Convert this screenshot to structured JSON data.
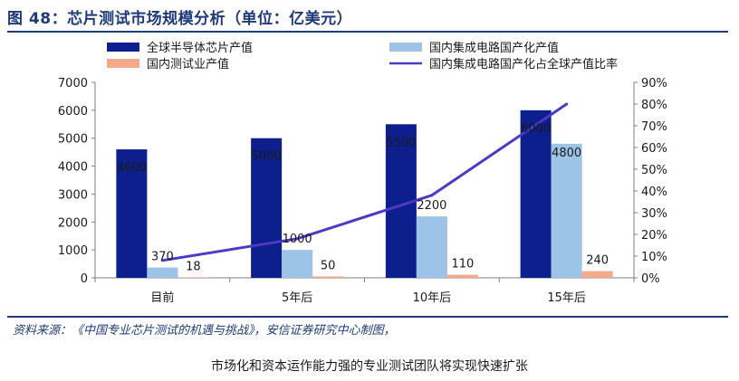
{
  "figure_title": "图 48：芯片测试市场规模分析（单位：亿美元）",
  "source_note": "资料来源：《中国专业芯片测试的机遇与挑战》，安信证券研究中心制图，",
  "caption": "市场化和资本运作能力强的专业测试团队将实现快速扩张",
  "chart_data": {
    "type": "bar",
    "categories": [
      "目前",
      "5年后",
      "10年后",
      "15年后"
    ],
    "series": [
      {
        "name": "全球半导体芯片产值",
        "type": "bar",
        "axis": "left",
        "color": "#0d1f8c",
        "values": [
          4600,
          5000,
          5500,
          6000
        ]
      },
      {
        "name": "国内集成电路国产化产值",
        "type": "bar",
        "axis": "left",
        "color": "#9dc3e6",
        "values": [
          370,
          1000,
          2200,
          4800
        ]
      },
      {
        "name": "国内测试业产值",
        "type": "bar",
        "axis": "left",
        "color": "#f4a98a",
        "values": [
          18,
          50,
          110,
          240
        ]
      },
      {
        "name": "国内集成电路国产化占全球产值比率",
        "type": "line",
        "axis": "right",
        "color": "#4a3ac6",
        "values": [
          8,
          18,
          38,
          80
        ]
      }
    ],
    "data_labels": {
      "全球半导体芯片产值": [
        "4600",
        "5000",
        "5500",
        "6000"
      ],
      "国内集成电路国产化产值": [
        "370",
        "1000",
        "2200",
        "4800"
      ],
      "国内测试业产值": [
        "18",
        "50",
        "110",
        "240"
      ]
    },
    "left_axis": {
      "min": 0,
      "max": 7000,
      "ticks": [
        "0",
        "1000",
        "2000",
        "3000",
        "4000",
        "5000",
        "6000",
        "7000"
      ]
    },
    "right_axis": {
      "min": 0,
      "max": 90,
      "ticks": [
        "0%",
        "10%",
        "20%",
        "30%",
        "40%",
        "50%",
        "60%",
        "70%",
        "80%",
        "90%"
      ]
    },
    "legend_position": "top",
    "grid": false
  }
}
